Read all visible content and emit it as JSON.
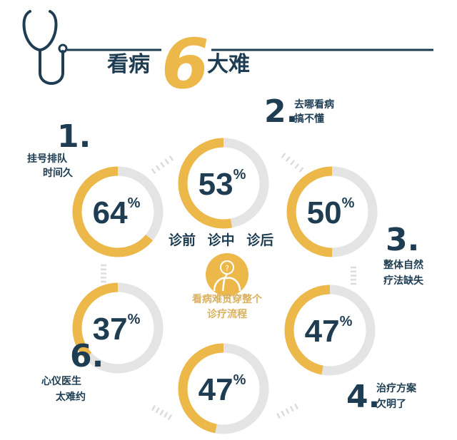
{
  "header": {
    "title_left": "看病",
    "title_number": "6",
    "title_right": "大难",
    "icon": "stethoscope-icon"
  },
  "colors": {
    "accent": "#ecb84a",
    "track": "#e4e4e4",
    "text": "#1e3d52"
  },
  "items": [
    {
      "number": "1.",
      "line1": "挂号排队",
      "line2": "时间久",
      "percent": 64,
      "percent_label": "64"
    },
    {
      "number": "2.",
      "line1": "去哪看病",
      "line2": "搞不懂",
      "percent": 53,
      "percent_label": "53"
    },
    {
      "number": "3.",
      "line1": "整体自然",
      "line2": "疗法缺失",
      "percent": 50,
      "percent_label": "50"
    },
    {
      "number": "4.",
      "line1": "治疗方案",
      "line2": "欠明了",
      "percent": 47,
      "percent_label": "47"
    },
    {
      "percent": 47,
      "percent_label": "47"
    },
    {
      "number": "6.",
      "line1": "心仪医生",
      "line2": "太难约",
      "percent": 37,
      "percent_label": "37"
    }
  ],
  "percent_sign": "%",
  "center": {
    "stages": "诊前 诊中 诊后",
    "icon": "confused-person-icon",
    "note_line1": "看病难贯穿整个",
    "note_line2": "诊疗流程"
  }
}
